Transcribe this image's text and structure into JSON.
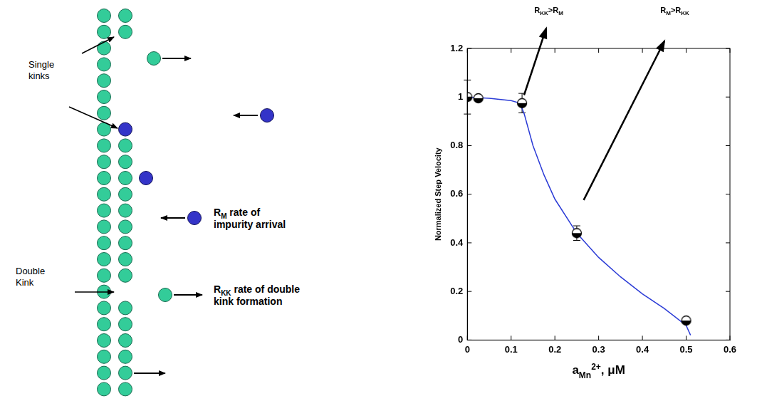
{
  "diagram": {
    "single_kinks": "Single kinks",
    "double_kink": "Double Kink",
    "impurity_arrival": {
      "symbol": "R",
      "subscript": "M",
      "lines": [
        "rate of",
        "impurity arrival"
      ]
    },
    "double_kink_formation": {
      "symbol": "R",
      "subscript": "KK",
      "lines": [
        "rate of double",
        "kink formation"
      ]
    }
  },
  "chart_data": {
    "type": "scatter",
    "x_label": [
      {
        "text": "a"
      },
      {
        "text": "Mn",
        "sub": true
      },
      {
        "text": "2+",
        "sup": true
      },
      {
        "text": ", μM"
      }
    ],
    "y_label": "Normalized Step Velocity",
    "xlim": [
      0,
      0.6
    ],
    "xticks": [
      0,
      0.1,
      0.2,
      0.3,
      0.4,
      0.5,
      0.6
    ],
    "ylim": [
      0,
      1.2
    ],
    "yticks": [
      0,
      0.2,
      0.4,
      0.6,
      0.8,
      1,
      1.2
    ],
    "grid": false,
    "series": [
      {
        "type": "scatter",
        "marker": "half-filled circle",
        "color": "#000000",
        "x": [
          0,
          0.025,
          0.125,
          0.25,
          0.5
        ],
        "values": [
          1.0,
          0.995,
          0.975,
          0.44,
          0.08
        ],
        "errors": [
          0.07,
          null,
          0.04,
          0.03,
          0.01
        ]
      },
      {
        "type": "line",
        "color": "#2b3bd6",
        "x": [
          0,
          0.05,
          0.1,
          0.12,
          0.13,
          0.15,
          0.175,
          0.2,
          0.25,
          0.3,
          0.35,
          0.4,
          0.45,
          0.5,
          0.51
        ],
        "values": [
          1.0,
          0.995,
          0.985,
          0.975,
          0.93,
          0.8,
          0.68,
          0.58,
          0.44,
          0.34,
          0.26,
          0.19,
          0.13,
          0.06,
          0.02
        ]
      }
    ],
    "annotations": [
      [
        {
          "text": "R"
        },
        {
          "text": "KK",
          "sub": true
        },
        {
          "text": ">R"
        },
        {
          "text": "M",
          "sub": true
        }
      ],
      [
        {
          "text": "R"
        },
        {
          "text": "M",
          "sub": true
        },
        {
          "text": ">R"
        },
        {
          "text": "KK",
          "sub": true
        }
      ]
    ]
  }
}
